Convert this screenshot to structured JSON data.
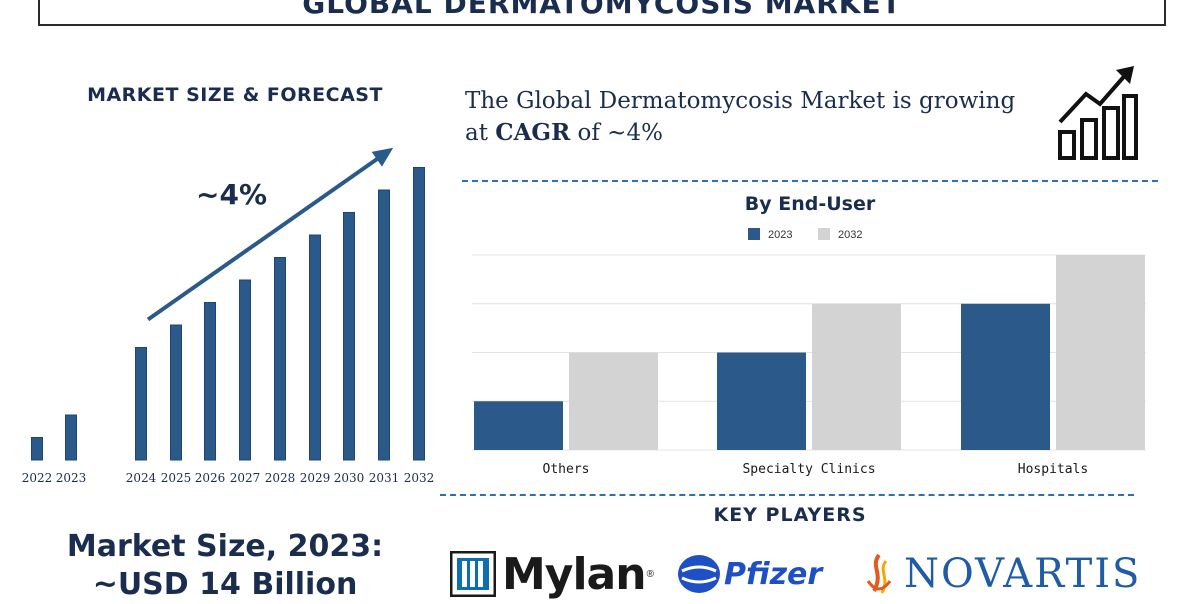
{
  "title": "GLOBAL DERMATOMYCOSIS MARKET",
  "left_panel": {
    "heading": "MARKET SIZE & FORECAST",
    "market_size_line1": "Market Size, 2023:",
    "market_size_line2": "~USD 14 Billion"
  },
  "cagr": {
    "prefix": "The Global Dermatomycosis Market is growing at",
    "emphasis": "CAGR",
    "suffix": "of ~4%"
  },
  "key_players": {
    "heading": "KEY PLAYERS",
    "logos": [
      "Mylan",
      "Pfizer",
      "NOVARTIS"
    ],
    "mylan_reg": "®"
  },
  "icons": {
    "growth": "bar-growth-arrow-icon"
  },
  "colors": {
    "primary_bar": "#2b5a8a",
    "secondary_bar": "#d3d3d3",
    "navy_text": "#1b2d4f",
    "dash": "#2f6fb0"
  },
  "chart_data": [
    {
      "type": "bar",
      "title": "",
      "categories": [
        "2022",
        "2023",
        "2024",
        "2025",
        "2026",
        "2027",
        "2028",
        "2029",
        "2030",
        "2031",
        "2032"
      ],
      "values": [
        1,
        2,
        5,
        6,
        7,
        8,
        9,
        10,
        11,
        12,
        13
      ],
      "annotation": "~4%",
      "xlabel": "",
      "ylabel": "",
      "grid": false
    },
    {
      "type": "bar",
      "title": "By End-User",
      "categories": [
        "Others",
        "Specialty Clinics",
        "Hospitals"
      ],
      "series": [
        {
          "name": "2023",
          "values": [
            1,
            2,
            3
          ]
        },
        {
          "name": "2032",
          "values": [
            2,
            3,
            4
          ]
        }
      ],
      "ylim": [
        0,
        4
      ],
      "grid": true,
      "legend": "top-center"
    }
  ]
}
